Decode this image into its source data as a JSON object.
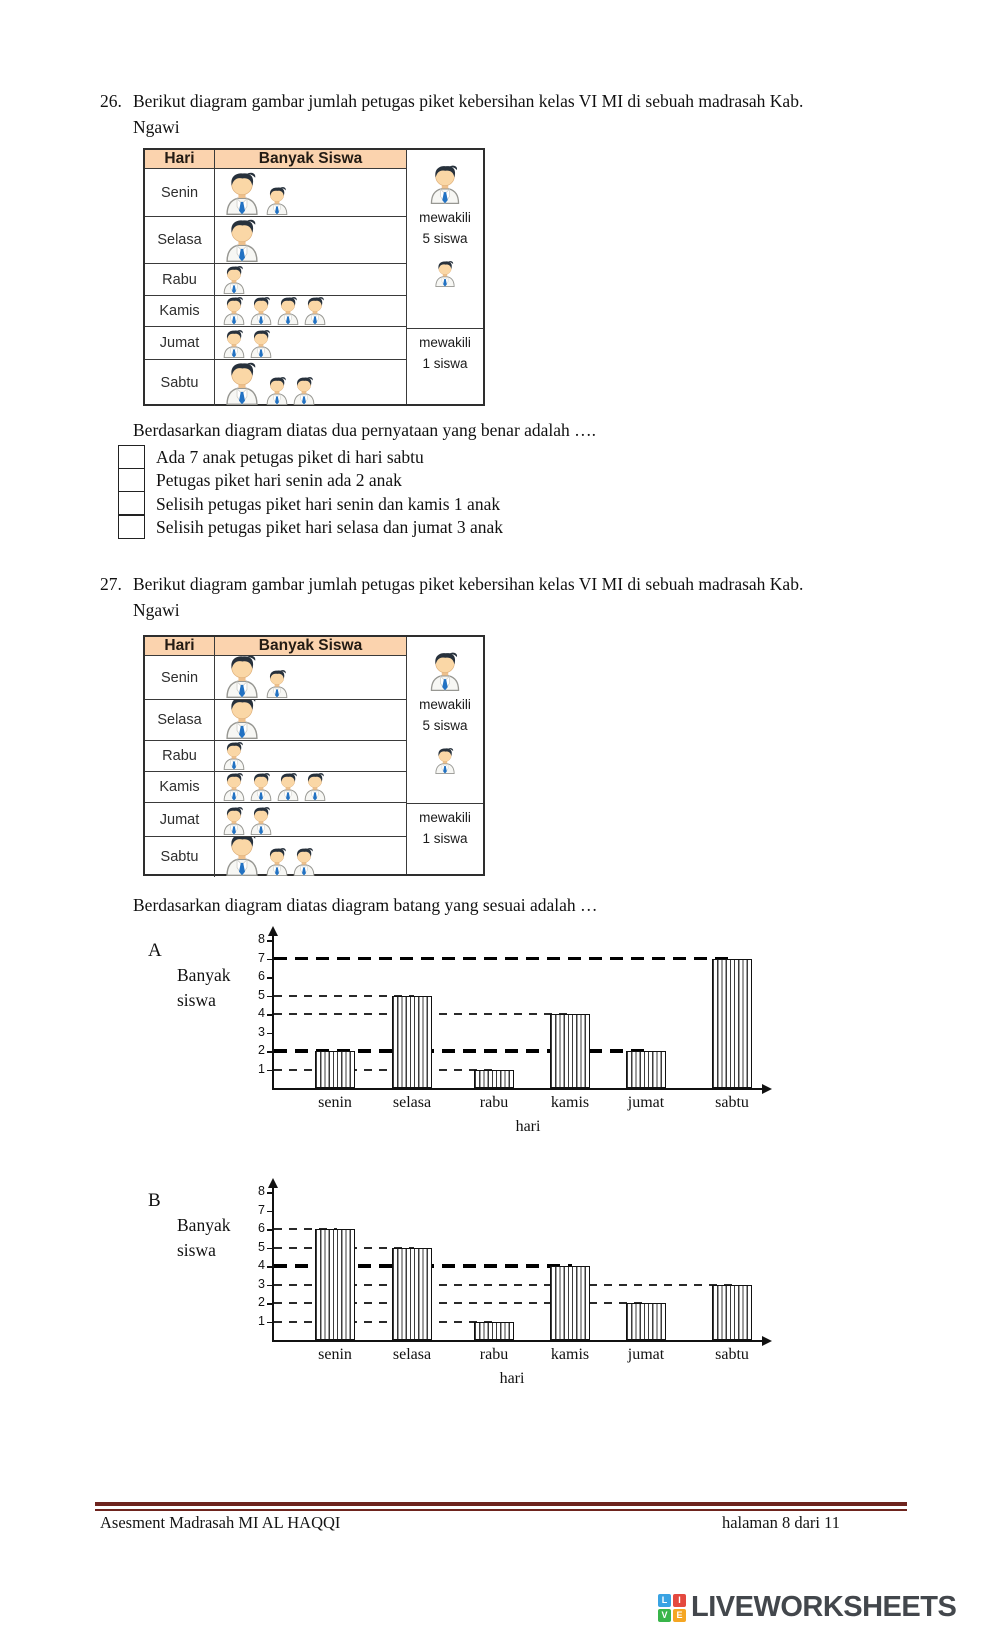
{
  "question26": {
    "number": "26.",
    "line1": "Berikut diagram gambar jumlah petugas piket kebersihan kelas VI MI di sebuah madrasah Kab.",
    "line2": "Ngawi",
    "prompt": "Berdasarkan diagram diatas dua pernyataan yang benar adalah ….",
    "options": [
      "Ada 7 anak petugas piket di hari sabtu",
      "Petugas piket hari senin ada 2 anak",
      "Selisih petugas piket hari senin dan kamis 1 anak",
      "Selisih petugas piket hari selasa dan jumat 3 anak"
    ]
  },
  "question27": {
    "number": "27.",
    "line1": "Berikut diagram gambar jumlah petugas piket kebersihan kelas VI MI di sebuah madrasah Kab.",
    "line2": "Ngawi",
    "prompt": "Berdasarkan diagram diatas diagram batang yang sesuai adalah …"
  },
  "pictograph": {
    "col_day": "Hari",
    "col_count": "Banyak Siswa",
    "header_bg": "#fbd3ae",
    "rows": [
      {
        "day": "Senin",
        "big": 1,
        "small": 1
      },
      {
        "day": "Selasa",
        "big": 1,
        "small": 0
      },
      {
        "day": "Rabu",
        "big": 0,
        "small": 1
      },
      {
        "day": "Kamis",
        "big": 0,
        "small": 4
      },
      {
        "day": "Jumat",
        "big": 0,
        "small": 2
      },
      {
        "day": "Sabtu",
        "big": 1,
        "small": 2
      }
    ],
    "legend_big": {
      "word1": "mewakili",
      "word2": "5 siswa",
      "value": 5
    },
    "legend_small": {
      "word1": "mewakili",
      "word2": "1 siswa",
      "value": 1
    }
  },
  "chart_data": [
    {
      "type": "bar",
      "option_label": "A",
      "ylabel": "Banyak siswa",
      "ylabel_lines": [
        "Banyak",
        "siswa"
      ],
      "xlabel": "hari",
      "categories": [
        "senin",
        "selasa",
        "rabu",
        "kamis",
        "jumat",
        "sabtu"
      ],
      "values": [
        2,
        5,
        1,
        4,
        2,
        7
      ],
      "yticks": [
        8,
        7,
        6,
        5,
        4,
        3,
        2,
        1
      ],
      "ylim": [
        0,
        8
      ],
      "legend": "none",
      "gridlines": [
        {
          "y": 7,
          "bold": true,
          "to": "sabtu"
        },
        {
          "y": 5,
          "bold": false,
          "to": "selasa"
        },
        {
          "y": 4,
          "bold": false,
          "to": "kamis"
        },
        {
          "y": 2,
          "bold": true,
          "to": "jumat"
        },
        {
          "y": 1,
          "bold": false,
          "to": "rabu"
        }
      ]
    },
    {
      "type": "bar",
      "option_label": "B",
      "ylabel": "Banyak siswa",
      "ylabel_lines": [
        "Banyak",
        "siswa"
      ],
      "xlabel": "hari",
      "categories": [
        "senin",
        "selasa",
        "rabu",
        "kamis",
        "jumat",
        "sabtu"
      ],
      "values": [
        6,
        5,
        1,
        4,
        2,
        3
      ],
      "yticks": [
        8,
        7,
        6,
        5,
        4,
        3,
        2,
        1
      ],
      "ylim": [
        0,
        8
      ],
      "legend": "none",
      "gridlines": [
        {
          "y": 6,
          "bold": false,
          "to": "senin"
        },
        {
          "y": 5,
          "bold": false,
          "to": "selasa"
        },
        {
          "y": 4,
          "bold": true,
          "to": "kamis"
        },
        {
          "y": 3,
          "bold": false,
          "to": "sabtu"
        },
        {
          "y": 2,
          "bold": false,
          "to": "jumat"
        },
        {
          "y": 1,
          "bold": false,
          "to": "rabu"
        }
      ]
    }
  ],
  "footer": {
    "left": "Asesment Madrasah MI AL HAQQI",
    "right": "halaman 8 dari 11"
  },
  "brand": {
    "name": "LIVEWORKSHEETS",
    "text_color": "#43474c",
    "tiles": [
      {
        "letter": "L",
        "color": "#3aa3e3"
      },
      {
        "letter": "I",
        "color": "#e4493f"
      },
      {
        "letter": "V",
        "color": "#39b54a"
      },
      {
        "letter": "E",
        "color": "#f5a623"
      }
    ]
  }
}
